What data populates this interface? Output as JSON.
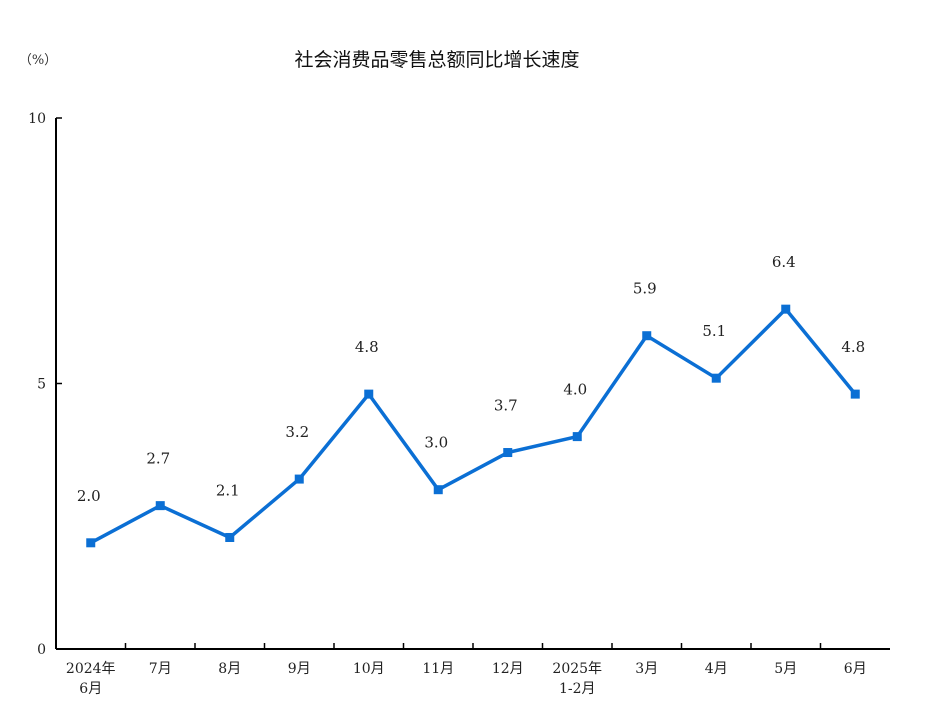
{
  "chart_data": {
    "type": "line",
    "title": "社会消费品零售总额同比增长速度",
    "ylabel": "（%）",
    "xlabel": "",
    "ylim": [
      0,
      10
    ],
    "yticks": [
      "0",
      "5",
      "10"
    ],
    "categories": [
      [
        "2024年",
        "6月"
      ],
      [
        "7月"
      ],
      [
        "8月"
      ],
      [
        "9月"
      ],
      [
        "10月"
      ],
      [
        "11月"
      ],
      [
        "12月"
      ],
      [
        "2025年",
        "1-2月"
      ],
      [
        "3月"
      ],
      [
        "4月"
      ],
      [
        "5月"
      ],
      [
        "6月"
      ]
    ],
    "values": [
      2.0,
      2.7,
      2.1,
      3.2,
      4.8,
      3.0,
      3.7,
      4.0,
      5.9,
      5.1,
      6.4,
      4.8
    ],
    "data_labels": [
      "2.0",
      "2.7",
      "2.1",
      "3.2",
      "4.8",
      "3.0",
      "3.7",
      "4.0",
      "5.9",
      "5.1",
      "6.4",
      "4.8"
    ],
    "grid": false,
    "line_color": "#0b6fd4"
  }
}
